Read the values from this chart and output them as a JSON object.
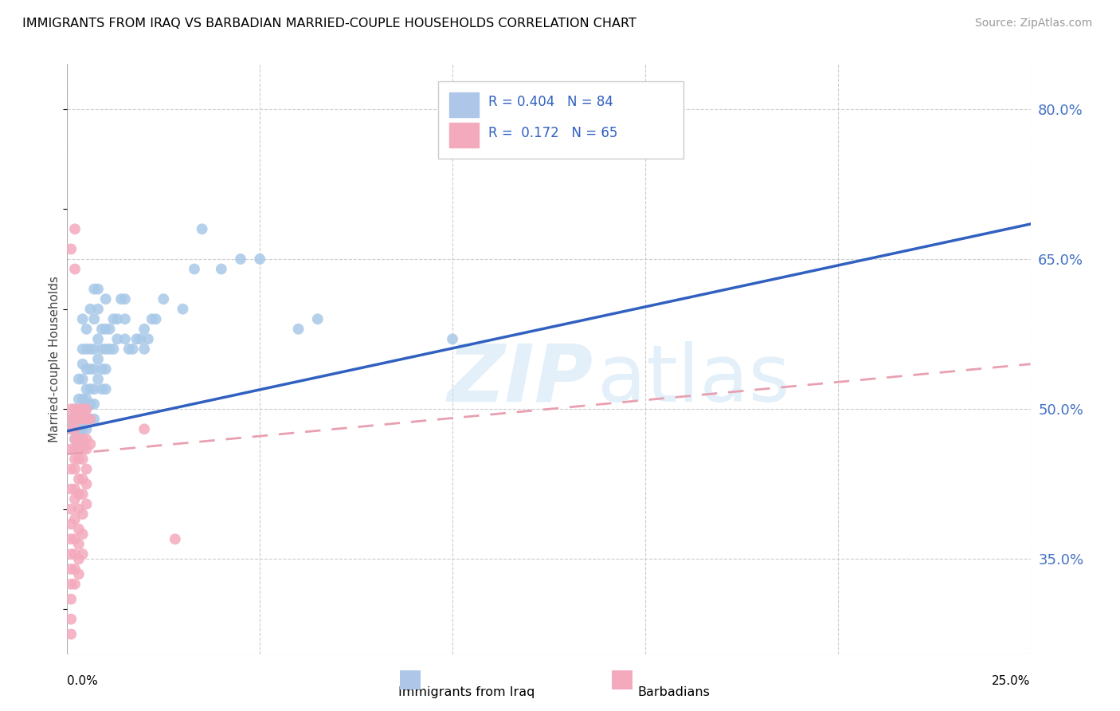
{
  "title": "IMMIGRANTS FROM IRAQ VS BARBADIAN MARRIED-COUPLE HOUSEHOLDS CORRELATION CHART",
  "source": "Source: ZipAtlas.com",
  "ylabel": "Married-couple Households",
  "blue_color": "#a8c8e8",
  "pink_color": "#f4aabd",
  "trendline_blue": "#3060c0",
  "trendline_pink": "#e8a0b0",
  "x_min": 0.0,
  "x_max": 0.25,
  "y_min": 0.255,
  "y_max": 0.845,
  "y_ticks": [
    0.35,
    0.5,
    0.65,
    0.8
  ],
  "x_ticks": [
    0.0,
    0.05,
    0.1,
    0.15,
    0.2,
    0.25
  ],
  "iraq_trendline": [
    0.0,
    0.478,
    0.25,
    0.685
  ],
  "barb_trendline": [
    0.0,
    0.455,
    0.25,
    0.545
  ],
  "iraq_points": [
    [
      0.001,
      0.49
    ],
    [
      0.001,
      0.48
    ],
    [
      0.002,
      0.5
    ],
    [
      0.002,
      0.49
    ],
    [
      0.002,
      0.47
    ],
    [
      0.003,
      0.53
    ],
    [
      0.003,
      0.51
    ],
    [
      0.003,
      0.49
    ],
    [
      0.003,
      0.48
    ],
    [
      0.003,
      0.46
    ],
    [
      0.004,
      0.59
    ],
    [
      0.004,
      0.56
    ],
    [
      0.004,
      0.545
    ],
    [
      0.004,
      0.53
    ],
    [
      0.004,
      0.51
    ],
    [
      0.004,
      0.495
    ],
    [
      0.004,
      0.48
    ],
    [
      0.005,
      0.58
    ],
    [
      0.005,
      0.56
    ],
    [
      0.005,
      0.54
    ],
    [
      0.005,
      0.52
    ],
    [
      0.005,
      0.51
    ],
    [
      0.005,
      0.5
    ],
    [
      0.005,
      0.49
    ],
    [
      0.005,
      0.48
    ],
    [
      0.006,
      0.6
    ],
    [
      0.006,
      0.56
    ],
    [
      0.006,
      0.54
    ],
    [
      0.006,
      0.52
    ],
    [
      0.006,
      0.505
    ],
    [
      0.006,
      0.49
    ],
    [
      0.007,
      0.62
    ],
    [
      0.007,
      0.59
    ],
    [
      0.007,
      0.56
    ],
    [
      0.007,
      0.54
    ],
    [
      0.007,
      0.52
    ],
    [
      0.007,
      0.505
    ],
    [
      0.007,
      0.49
    ],
    [
      0.008,
      0.62
    ],
    [
      0.008,
      0.6
    ],
    [
      0.008,
      0.57
    ],
    [
      0.008,
      0.55
    ],
    [
      0.008,
      0.53
    ],
    [
      0.009,
      0.58
    ],
    [
      0.009,
      0.56
    ],
    [
      0.009,
      0.54
    ],
    [
      0.009,
      0.52
    ],
    [
      0.01,
      0.61
    ],
    [
      0.01,
      0.58
    ],
    [
      0.01,
      0.56
    ],
    [
      0.01,
      0.54
    ],
    [
      0.01,
      0.52
    ],
    [
      0.011,
      0.58
    ],
    [
      0.011,
      0.56
    ],
    [
      0.012,
      0.59
    ],
    [
      0.012,
      0.56
    ],
    [
      0.013,
      0.59
    ],
    [
      0.013,
      0.57
    ],
    [
      0.014,
      0.61
    ],
    [
      0.015,
      0.61
    ],
    [
      0.015,
      0.59
    ],
    [
      0.015,
      0.57
    ],
    [
      0.016,
      0.56
    ],
    [
      0.017,
      0.56
    ],
    [
      0.018,
      0.57
    ],
    [
      0.019,
      0.57
    ],
    [
      0.02,
      0.58
    ],
    [
      0.02,
      0.56
    ],
    [
      0.021,
      0.57
    ],
    [
      0.022,
      0.59
    ],
    [
      0.023,
      0.59
    ],
    [
      0.025,
      0.61
    ],
    [
      0.03,
      0.6
    ],
    [
      0.033,
      0.64
    ],
    [
      0.035,
      0.68
    ],
    [
      0.04,
      0.64
    ],
    [
      0.045,
      0.65
    ],
    [
      0.05,
      0.65
    ],
    [
      0.06,
      0.58
    ],
    [
      0.065,
      0.59
    ],
    [
      0.1,
      0.57
    ],
    [
      0.108,
      0.79
    ],
    [
      0.12,
      0.79
    ]
  ],
  "barbadian_points": [
    [
      0.001,
      0.66
    ],
    [
      0.001,
      0.5
    ],
    [
      0.001,
      0.49
    ],
    [
      0.001,
      0.48
    ],
    [
      0.001,
      0.46
    ],
    [
      0.001,
      0.44
    ],
    [
      0.001,
      0.42
    ],
    [
      0.001,
      0.4
    ],
    [
      0.001,
      0.385
    ],
    [
      0.001,
      0.37
    ],
    [
      0.001,
      0.355
    ],
    [
      0.001,
      0.34
    ],
    [
      0.001,
      0.325
    ],
    [
      0.001,
      0.31
    ],
    [
      0.001,
      0.29
    ],
    [
      0.001,
      0.275
    ],
    [
      0.002,
      0.68
    ],
    [
      0.002,
      0.64
    ],
    [
      0.002,
      0.5
    ],
    [
      0.002,
      0.49
    ],
    [
      0.002,
      0.48
    ],
    [
      0.002,
      0.47
    ],
    [
      0.002,
      0.46
    ],
    [
      0.002,
      0.45
    ],
    [
      0.002,
      0.44
    ],
    [
      0.002,
      0.42
    ],
    [
      0.002,
      0.41
    ],
    [
      0.002,
      0.39
    ],
    [
      0.002,
      0.37
    ],
    [
      0.002,
      0.355
    ],
    [
      0.002,
      0.34
    ],
    [
      0.002,
      0.325
    ],
    [
      0.003,
      0.5
    ],
    [
      0.003,
      0.49
    ],
    [
      0.003,
      0.47
    ],
    [
      0.003,
      0.46
    ],
    [
      0.003,
      0.45
    ],
    [
      0.003,
      0.43
    ],
    [
      0.003,
      0.415
    ],
    [
      0.003,
      0.4
    ],
    [
      0.003,
      0.38
    ],
    [
      0.003,
      0.365
    ],
    [
      0.003,
      0.35
    ],
    [
      0.003,
      0.335
    ],
    [
      0.004,
      0.5
    ],
    [
      0.004,
      0.49
    ],
    [
      0.004,
      0.47
    ],
    [
      0.004,
      0.46
    ],
    [
      0.004,
      0.45
    ],
    [
      0.004,
      0.43
    ],
    [
      0.004,
      0.415
    ],
    [
      0.004,
      0.395
    ],
    [
      0.004,
      0.375
    ],
    [
      0.004,
      0.355
    ],
    [
      0.005,
      0.5
    ],
    [
      0.005,
      0.49
    ],
    [
      0.005,
      0.47
    ],
    [
      0.005,
      0.46
    ],
    [
      0.005,
      0.44
    ],
    [
      0.005,
      0.425
    ],
    [
      0.005,
      0.405
    ],
    [
      0.006,
      0.49
    ],
    [
      0.006,
      0.465
    ],
    [
      0.02,
      0.48
    ],
    [
      0.028,
      0.37
    ]
  ]
}
